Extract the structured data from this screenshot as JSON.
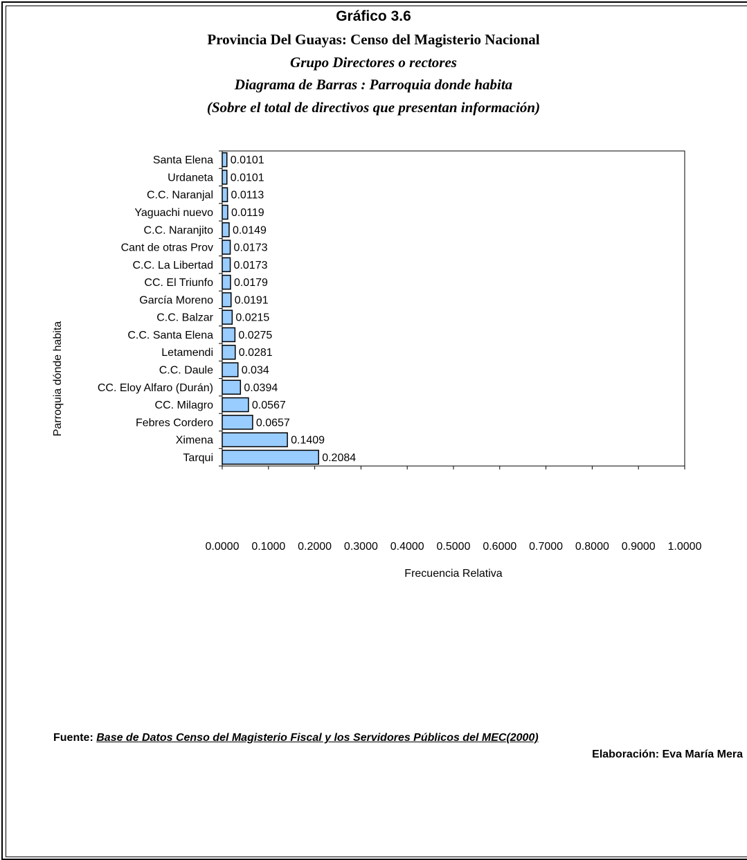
{
  "titles": {
    "title": "Gráfico 3.6",
    "subtitle1": "Provincia Del Guayas: Censo del Magisterio Nacional",
    "subtitle2": "Grupo Directores o rectores",
    "subtitle3": "Diagrama de Barras : Parroquia donde habita",
    "subtitle4": "(Sobre el total de directivos que presentan información)"
  },
  "footer": {
    "source_label": "Fuente:",
    "source_text": "Base de Datos Censo del Magisterio Fiscal y los Servidores Públicos del MEC(2000)",
    "author": "Elaboración: Eva María Mera"
  },
  "colors": {
    "bar_fill": "#99CCFF",
    "bar_stroke": "#000000"
  },
  "chart_data": {
    "type": "bar",
    "orientation": "horizontal",
    "xlabel": "Frecuencia Relativa",
    "ylabel": "Parroquia dónde habita",
    "xlim": [
      0,
      1
    ],
    "x_ticks": [
      "0.0000",
      "0.1000",
      "0.2000",
      "0.3000",
      "0.4000",
      "0.5000",
      "0.6000",
      "0.7000",
      "0.8000",
      "0.9000",
      "1.0000"
    ],
    "grid": false,
    "categories": [
      "Santa Elena",
      "Urdaneta",
      "C.C. Naranjal",
      "Yaguachi nuevo",
      "C.C. Naranjito",
      "Cant de otras Prov",
      "C.C. La Libertad",
      "CC. El Triunfo",
      "García Moreno",
      "C.C. Balzar",
      "C.C. Santa Elena",
      "Letamendi",
      "C.C. Daule",
      "CC. Eloy Alfaro (Durán)",
      "CC. Milagro",
      "Febres Cordero",
      "Ximena",
      "Tarqui"
    ],
    "values": [
      0.0101,
      0.0101,
      0.0113,
      0.0119,
      0.0149,
      0.0173,
      0.0173,
      0.0179,
      0.0191,
      0.0215,
      0.0275,
      0.0281,
      0.034,
      0.0394,
      0.0567,
      0.0657,
      0.1409,
      0.2084
    ],
    "data_labels": [
      "0.0101",
      "0.0101",
      "0.0113",
      "0.0119",
      "0.0149",
      "0.0173",
      "0.0173",
      "0.0179",
      "0.0191",
      "0.0215",
      "0.0275",
      "0.0281",
      "0.034",
      "0.0394",
      "0.0567",
      "0.0657",
      "0.1409",
      "0.2084"
    ]
  }
}
